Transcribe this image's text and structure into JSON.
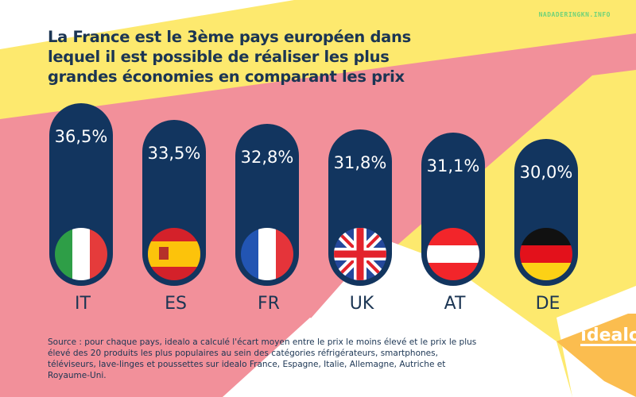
{
  "watermark": "NADADERINGKN.INFO",
  "chart_data": {
    "type": "bar",
    "title": "La France est le 3ème pays européen dans lequel il est possible de réaliser les plus grandes économies en comparant les prix",
    "categories": [
      "IT",
      "ES",
      "FR",
      "UK",
      "AT",
      "DE"
    ],
    "values": [
      36.5,
      33.5,
      32.8,
      31.8,
      31.1,
      30.0
    ],
    "value_labels": [
      "36,5%",
      "33,5%",
      "32,8%",
      "31,8%",
      "31,1%",
      "30,0%"
    ],
    "flags": [
      "italy-flag",
      "spain-flag",
      "france-flag",
      "uk-flag",
      "austria-flag",
      "germany-flag"
    ],
    "bar_color": "#12355f",
    "xlabel": "",
    "ylabel": ""
  },
  "source": "Source :  pour chaque pays, idealo a calculé l'écart moyen entre le prix le moins élevé et le prix le plus élevé des 20 produits les plus populaires au sein des catégories réfrigérateurs, smartphones, téléviseurs, lave-linges et poussettes sur idealo France, Espagne, Italie, Allemagne, Autriche et Royaume-Uni.",
  "logo": "idealo",
  "colors": {
    "yellow": "#fde96e",
    "pink": "#f2909a",
    "orange": "#fbbd4f",
    "navy": "#12355f"
  }
}
